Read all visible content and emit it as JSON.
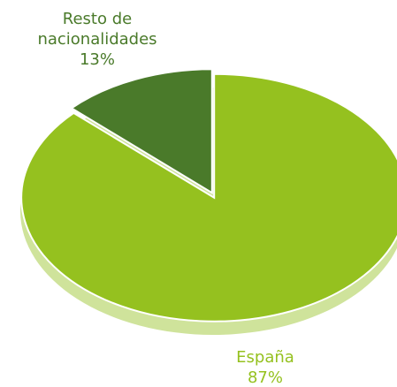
{
  "chart_data": {
    "type": "pie",
    "categories": [
      "España",
      "Resto de nacionalidades"
    ],
    "values": [
      87,
      13
    ],
    "value_labels": [
      "87%",
      "13%"
    ],
    "colors": [
      "#95c11f",
      "#4a7a2a"
    ]
  }
}
